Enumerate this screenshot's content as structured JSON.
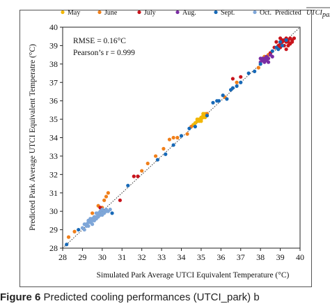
{
  "caption": {
    "figure_label": "Figure 6",
    "text": "Predicted cooling performances (UTCI_park) b"
  },
  "chart_data": {
    "type": "scatter",
    "xlabel": "Simulated Park Average UTCI Equivalent Temperature  (°C)",
    "ylabel": "Predicted  Park Average UTCI Equivalent Temperatre  (°C)",
    "xlim": [
      28,
      40
    ],
    "ylim": [
      28,
      40
    ],
    "xticks": [
      "28",
      "29",
      "30",
      "31",
      "32",
      "33",
      "34",
      "35",
      "36",
      "37",
      "38",
      "39",
      "40"
    ],
    "yticks": [
      "28",
      "29",
      "30",
      "31",
      "32",
      "33",
      "34",
      "35",
      "36",
      "37",
      "38",
      "39",
      "40"
    ],
    "grid": false,
    "legend_position": "top",
    "reference_line": {
      "style": "dotted",
      "from": [
        28,
        28
      ],
      "to": [
        40,
        40
      ]
    },
    "annotations": {
      "rmse": "RMSE = 0.16°C",
      "pearson": "Pearson’s r = 0.999"
    },
    "legend_extra": {
      "predicted": "Predicted",
      "symbol_base": "UTCI",
      "symbol_sub": "park"
    },
    "series": [
      {
        "name": "May",
        "color": "#f2b705",
        "points": [
          [
            34.7,
            34.8
          ],
          [
            34.8,
            35.0
          ],
          [
            34.9,
            34.9
          ],
          [
            35.0,
            35.1
          ],
          [
            35.1,
            35.2
          ],
          [
            35.2,
            35.3
          ],
          [
            34.9,
            35.0
          ],
          [
            35.0,
            34.9
          ],
          [
            35.1,
            35.1
          ],
          [
            35.2,
            35.1
          ],
          [
            34.8,
            34.9
          ],
          [
            35.0,
            35.0
          ],
          [
            35.3,
            35.3
          ],
          [
            34.6,
            34.7
          ],
          [
            35.1,
            35.3
          ],
          [
            35.2,
            35.2
          ]
        ]
      },
      {
        "name": "June",
        "color": "#f07f1a",
        "points": [
          [
            28.3,
            28.6
          ],
          [
            28.6,
            28.9
          ],
          [
            29.5,
            29.9
          ],
          [
            29.8,
            30.3
          ],
          [
            30.0,
            30.2
          ],
          [
            30.1,
            30.6
          ],
          [
            30.2,
            30.8
          ],
          [
            30.3,
            31.0
          ],
          [
            32.0,
            32.2
          ],
          [
            32.3,
            32.6
          ],
          [
            32.7,
            33.0
          ],
          [
            33.1,
            33.4
          ],
          [
            33.4,
            33.9
          ],
          [
            33.6,
            34.0
          ],
          [
            33.8,
            34.0
          ],
          [
            34.3,
            34.2
          ],
          [
            34.5,
            34.6
          ],
          [
            35.3,
            35.3
          ],
          [
            36.2,
            36.2
          ],
          [
            36.8,
            37.0
          ],
          [
            37.9,
            37.8
          ],
          [
            38.2,
            38.4
          ],
          [
            38.4,
            38.5
          ]
        ]
      },
      {
        "name": "July",
        "color": "#c8141c",
        "points": [
          [
            29.9,
            30.2
          ],
          [
            30.9,
            30.6
          ],
          [
            31.6,
            31.9
          ],
          [
            31.8,
            31.9
          ],
          [
            36.6,
            37.2
          ],
          [
            37.0,
            37.3
          ],
          [
            38.5,
            38.6
          ],
          [
            38.7,
            38.9
          ],
          [
            38.9,
            39.0
          ],
          [
            39.0,
            39.1
          ],
          [
            39.1,
            39.3
          ],
          [
            39.2,
            39.0
          ],
          [
            39.3,
            39.2
          ],
          [
            39.4,
            39.3
          ],
          [
            39.5,
            39.1
          ],
          [
            39.6,
            39.3
          ],
          [
            39.7,
            39.4
          ],
          [
            39.0,
            38.9
          ],
          [
            39.2,
            39.3
          ],
          [
            39.4,
            39.0
          ],
          [
            39.1,
            39.2
          ],
          [
            39.3,
            38.8
          ],
          [
            38.8,
            39.2
          ],
          [
            39.5,
            39.4
          ],
          [
            39.6,
            39.2
          ],
          [
            39.0,
            39.4
          ],
          [
            39.3,
            39.4
          ],
          [
            39.4,
            39.2
          ]
        ]
      },
      {
        "name": "Aug.",
        "color": "#7a2ca3",
        "points": [
          [
            38.0,
            38.1
          ],
          [
            38.1,
            38.2
          ],
          [
            38.2,
            38.3
          ],
          [
            38.3,
            38.2
          ],
          [
            38.4,
            38.3
          ],
          [
            38.5,
            38.5
          ],
          [
            38.2,
            38.1
          ],
          [
            38.3,
            38.4
          ],
          [
            38.1,
            38.3
          ],
          [
            38.4,
            38.1
          ],
          [
            38.6,
            38.4
          ],
          [
            38.0,
            38.3
          ]
        ]
      },
      {
        "name": "Sept.",
        "color": "#1769b7",
        "points": [
          [
            28.2,
            28.2
          ],
          [
            28.8,
            29.0
          ],
          [
            30.5,
            29.9
          ],
          [
            31.3,
            31.4
          ],
          [
            32.8,
            32.8
          ],
          [
            33.2,
            33.1
          ],
          [
            33.6,
            33.6
          ],
          [
            34.0,
            34.1
          ],
          [
            34.4,
            34.5
          ],
          [
            34.7,
            34.6
          ],
          [
            35.3,
            35.2
          ],
          [
            35.6,
            35.9
          ],
          [
            35.9,
            36.0
          ],
          [
            36.1,
            36.3
          ],
          [
            36.3,
            36.1
          ],
          [
            36.5,
            36.6
          ],
          [
            36.8,
            36.8
          ],
          [
            37.0,
            37.0
          ],
          [
            37.4,
            37.5
          ],
          [
            37.7,
            37.6
          ],
          [
            38.0,
            38.0
          ],
          [
            38.6,
            38.7
          ],
          [
            38.9,
            38.8
          ],
          [
            39.1,
            39.0
          ],
          [
            39.3,
            39.3
          ],
          [
            39.0,
            39.2
          ],
          [
            38.8,
            38.9
          ],
          [
            35.8,
            36.0
          ],
          [
            36.6,
            36.7
          ]
        ]
      },
      {
        "name": "Oct.",
        "color": "#7ea6d8",
        "points": [
          [
            29.0,
            29.1
          ],
          [
            29.1,
            29.3
          ],
          [
            29.2,
            29.3
          ],
          [
            29.3,
            29.4
          ],
          [
            29.4,
            29.5
          ],
          [
            29.5,
            29.5
          ],
          [
            29.6,
            29.6
          ],
          [
            29.7,
            29.7
          ],
          [
            29.8,
            29.8
          ],
          [
            29.9,
            29.8
          ],
          [
            30.0,
            29.9
          ],
          [
            30.1,
            30.0
          ],
          [
            30.2,
            30.1
          ],
          [
            30.3,
            30.0
          ],
          [
            29.2,
            29.2
          ],
          [
            29.4,
            29.4
          ],
          [
            29.6,
            29.7
          ],
          [
            29.8,
            29.7
          ],
          [
            30.0,
            30.1
          ],
          [
            29.3,
            29.2
          ],
          [
            29.5,
            29.6
          ],
          [
            29.7,
            29.9
          ],
          [
            29.9,
            30.0
          ],
          [
            30.1,
            29.9
          ],
          [
            29.1,
            29.0
          ],
          [
            29.4,
            29.6
          ],
          [
            29.6,
            29.5
          ],
          [
            29.8,
            29.9
          ],
          [
            30.2,
            30.0
          ],
          [
            29.5,
            29.3
          ],
          [
            30.0,
            29.8
          ],
          [
            29.7,
            29.6
          ],
          [
            29.3,
            29.5
          ],
          [
            30.4,
            30.1
          ]
        ]
      }
    ]
  }
}
